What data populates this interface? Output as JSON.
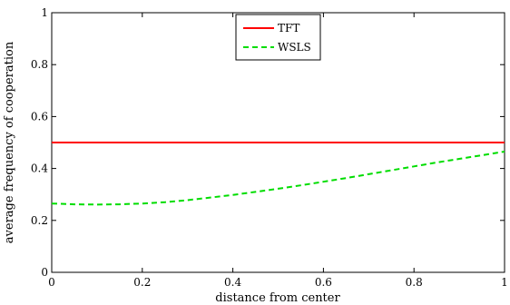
{
  "chart_data": {
    "type": "line",
    "xlabel": "distance from center",
    "ylabel": "average frequency of cooperation",
    "xlim": [
      0,
      1
    ],
    "ylim": [
      0,
      1
    ],
    "x_ticks": [
      "0",
      "0.2",
      "0.4",
      "0.6",
      "0.8",
      "1"
    ],
    "y_ticks": [
      "0",
      "0.2",
      "0.4",
      "0.6",
      "0.8",
      "1"
    ],
    "grid": false,
    "legend_position": "top-center",
    "x": [
      0,
      0.05,
      0.1,
      0.15,
      0.2,
      0.25,
      0.3,
      0.35,
      0.4,
      0.45,
      0.5,
      0.55,
      0.6,
      0.65,
      0.7,
      0.75,
      0.8,
      0.85,
      0.9,
      0.95,
      1.0
    ],
    "series": [
      {
        "name": "TFT",
        "color": "#ff0000",
        "style": "solid",
        "values": [
          0.5,
          0.5,
          0.5,
          0.5,
          0.5,
          0.5,
          0.5,
          0.5,
          0.5,
          0.5,
          0.5,
          0.5,
          0.5,
          0.5,
          0.5,
          0.5,
          0.5,
          0.5,
          0.5,
          0.5,
          0.5
        ]
      },
      {
        "name": "WSLS",
        "color": "#00dd00",
        "style": "dashed",
        "values": [
          0.265,
          0.262,
          0.261,
          0.262,
          0.265,
          0.27,
          0.278,
          0.288,
          0.298,
          0.31,
          0.322,
          0.335,
          0.349,
          0.363,
          0.378,
          0.393,
          0.408,
          0.423,
          0.437,
          0.451,
          0.465
        ]
      }
    ]
  }
}
